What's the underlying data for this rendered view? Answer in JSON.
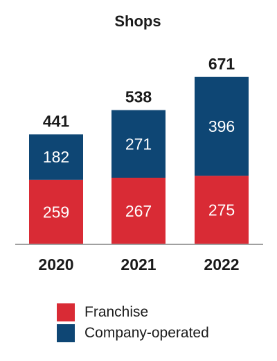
{
  "chart_data": {
    "type": "bar",
    "stacked": true,
    "title": "Shops",
    "categories": [
      "2020",
      "2021",
      "2022"
    ],
    "series": [
      {
        "name": "Franchise",
        "values": [
          259,
          267,
          275
        ],
        "color": "#d92b35"
      },
      {
        "name": "Company-operated",
        "values": [
          182,
          271,
          396
        ],
        "color": "#0e4674"
      }
    ],
    "totals": [
      441,
      538,
      671
    ],
    "legend_position": "bottom",
    "grid": false,
    "axis_color": "#a0a0a0"
  }
}
